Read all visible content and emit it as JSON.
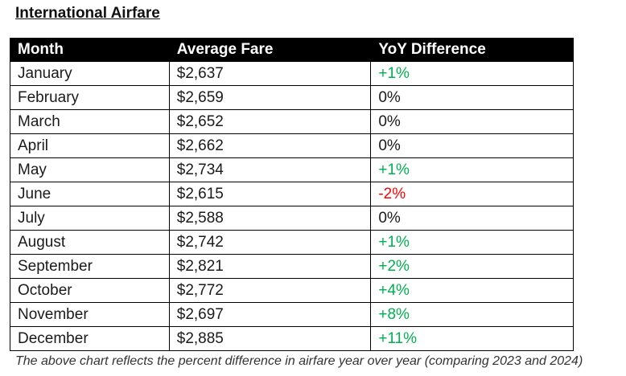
{
  "title": "International Airfare",
  "columns": [
    "Month",
    "Average Fare",
    "YoY Difference"
  ],
  "rows": [
    {
      "month": "January",
      "fare": "$2,637",
      "yoy": "+1%",
      "trend": "pos"
    },
    {
      "month": "February",
      "fare": "$2,659",
      "yoy": "0%",
      "trend": "neutral"
    },
    {
      "month": "March",
      "fare": "$2,652",
      "yoy": "0%",
      "trend": "neutral"
    },
    {
      "month": "April",
      "fare": "$2,662",
      "yoy": "0%",
      "trend": "neutral"
    },
    {
      "month": "May",
      "fare": "$2,734",
      "yoy": "+1%",
      "trend": "pos"
    },
    {
      "month": "June",
      "fare": "$2,615",
      "yoy": "-2%",
      "trend": "neg"
    },
    {
      "month": "July",
      "fare": "$2,588",
      "yoy": "0%",
      "trend": "neutral"
    },
    {
      "month": "August",
      "fare": "$2,742",
      "yoy": "+1%",
      "trend": "pos"
    },
    {
      "month": "September",
      "fare": "$2,821",
      "yoy": "+2%",
      "trend": "pos"
    },
    {
      "month": "October",
      "fare": "$2,772",
      "yoy": "+4%",
      "trend": "pos"
    },
    {
      "month": "November",
      "fare": "$2,697",
      "yoy": "+8%",
      "trend": "pos"
    },
    {
      "month": "December",
      "fare": "$2,885",
      "yoy": "+11%",
      "trend": "pos"
    }
  ],
  "colors": {
    "positive": "#00b050",
    "negative": "#ff0000",
    "header_bg": "#000000"
  },
  "caption": "The above chart reflects the percent difference in airfare year over year (comparing 2023 and 2024)"
}
